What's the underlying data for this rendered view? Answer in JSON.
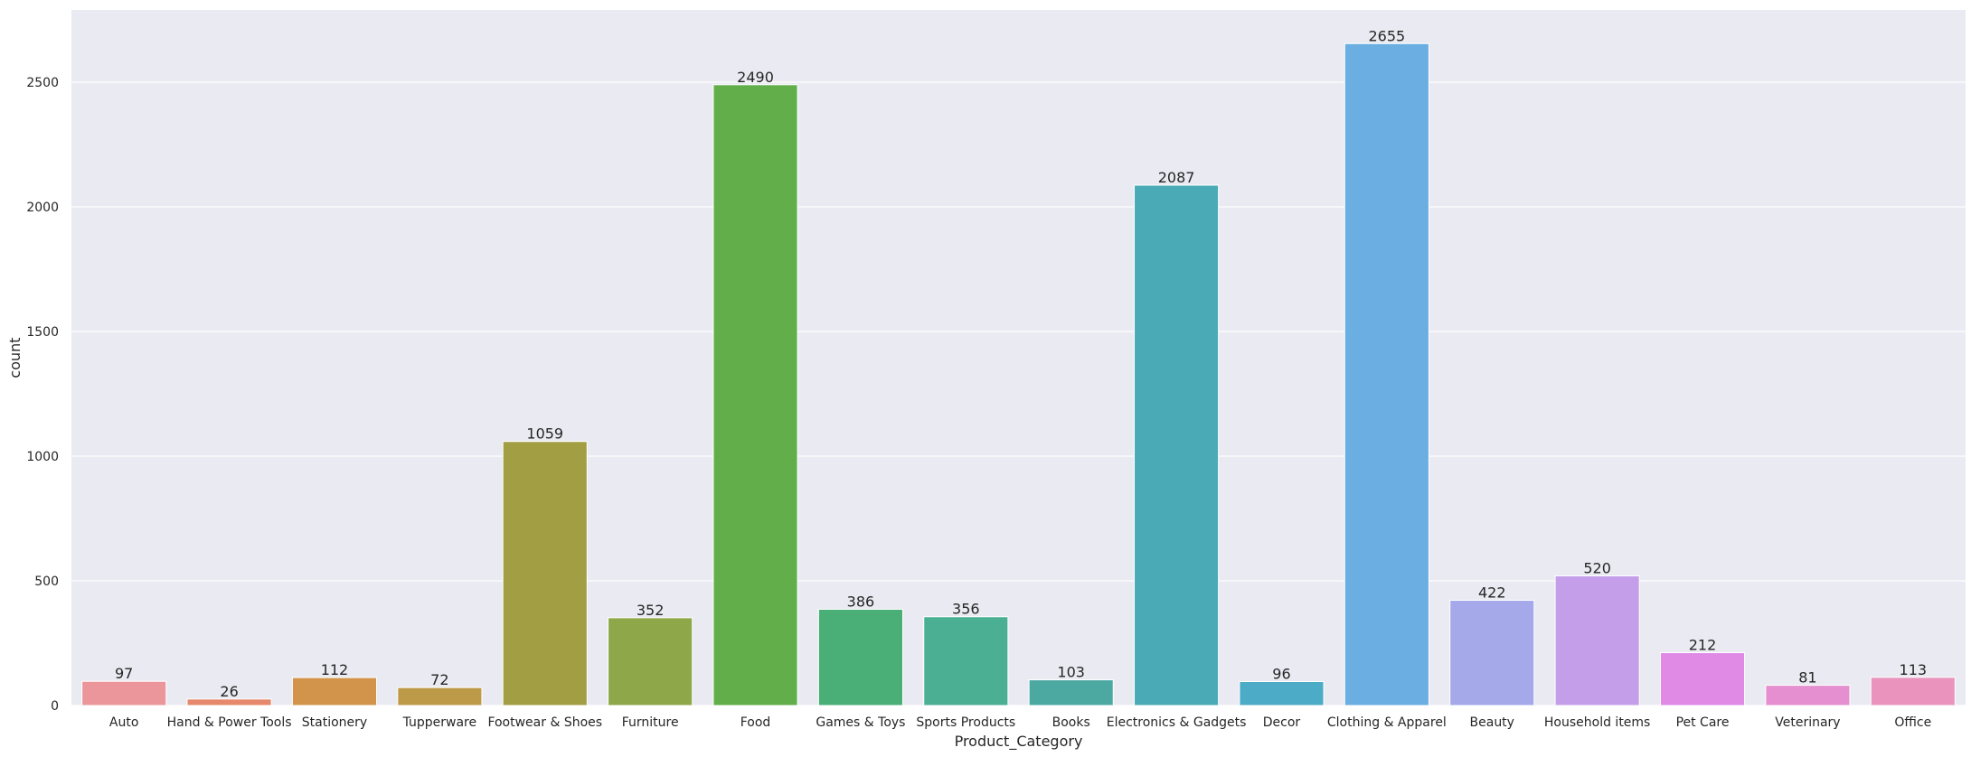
{
  "chart_data": {
    "type": "bar",
    "xlabel": "Product_Category",
    "ylabel": "count",
    "ylim": [
      0,
      2790
    ],
    "yticks": [
      0,
      500,
      1000,
      1500,
      2000,
      2500
    ],
    "grid": true,
    "legend": "none",
    "categories": [
      "Auto",
      "Hand & Power Tools",
      "Stationery",
      "Tupperware",
      "Footwear & Shoes",
      "Furniture",
      "Food",
      "Games & Toys",
      "Sports Products",
      "Books",
      "Electronics & Gadgets",
      "Decor",
      "Clothing & Apparel",
      "Beauty",
      "Household items",
      "Pet Care",
      "Veterinary",
      "Office"
    ],
    "values": [
      97,
      26,
      112,
      72,
      1059,
      352,
      2490,
      386,
      356,
      103,
      2087,
      96,
      2655,
      422,
      520,
      212,
      81,
      113
    ],
    "colors": [
      "#ea969a",
      "#e5886b",
      "#d2944a",
      "#bd9a48",
      "#a29e43",
      "#8ea748",
      "#61ae4a",
      "#4aae77",
      "#4baf94",
      "#4ba9a2",
      "#4aabb6",
      "#4cabc6",
      "#6aaee2",
      "#a5a9e9",
      "#c59ee9",
      "#e08ae6",
      "#e58fd0",
      "#ea93bc"
    ]
  }
}
